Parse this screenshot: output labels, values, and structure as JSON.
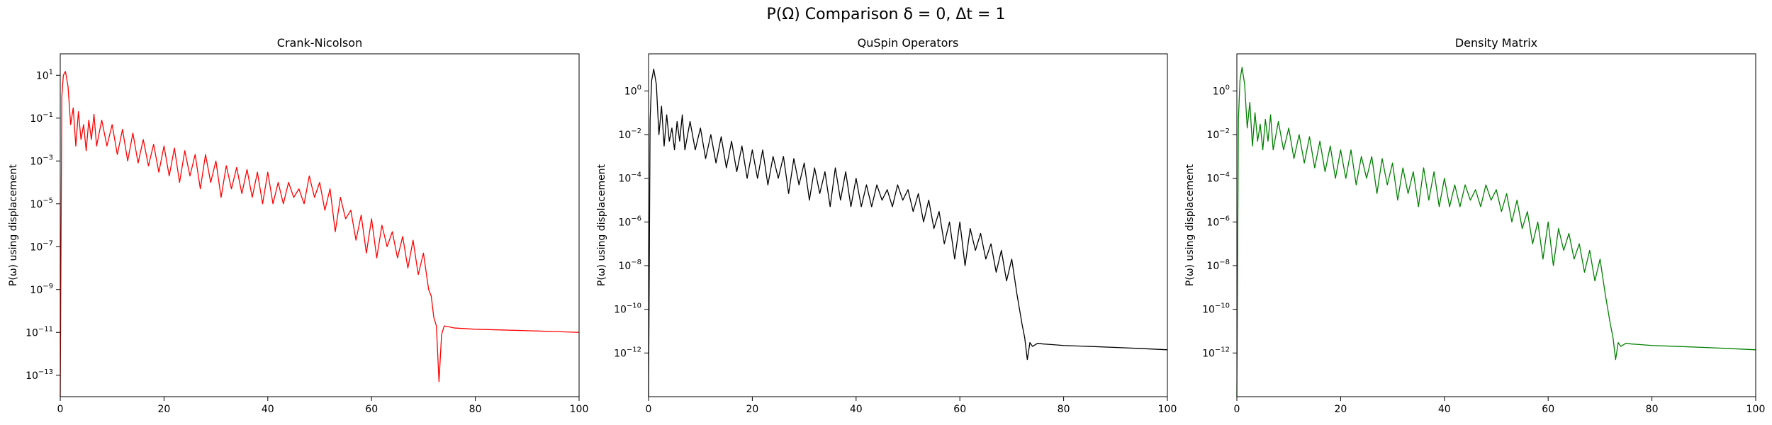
{
  "figure": {
    "title": "P(Ω) Comparison δ = 0, Δt = 1"
  },
  "chart_data": [
    {
      "type": "line",
      "title": "Crank-Nicolson",
      "xlabel": "",
      "ylabel": "P(ω) using displacement",
      "yscale": "log",
      "xlim": [
        0,
        100
      ],
      "ylim": [
        1e-14,
        100
      ],
      "xticks": [
        0,
        20,
        40,
        60,
        80,
        100
      ],
      "yticks_exponents": [
        1,
        -1,
        -3,
        -5,
        -7,
        -9,
        -11,
        -13
      ],
      "grid": false,
      "legend": "none",
      "color": "#ff0000",
      "series": [
        {
          "x": [
            0,
            0.3,
            0.6,
            1,
            1.5,
            2,
            2.5,
            3,
            3.5,
            4,
            4.5,
            5,
            5.5,
            6,
            6.5,
            7,
            8,
            9,
            10,
            11,
            12,
            13,
            14,
            15,
            16,
            17,
            18,
            19,
            20,
            21,
            22,
            23,
            24,
            25,
            26,
            27,
            28,
            29,
            30,
            31,
            32,
            33,
            34,
            35,
            36,
            37,
            38,
            39,
            40,
            41,
            42,
            43,
            44,
            45,
            46,
            47,
            48,
            49,
            50,
            51,
            52,
            53,
            54,
            55,
            56,
            57,
            58,
            59,
            60,
            61,
            62,
            63,
            64,
            65,
            66,
            67,
            68,
            69,
            70,
            71,
            71.5,
            72,
            72.5,
            73,
            73.5,
            74,
            75,
            76,
            78,
            80,
            85,
            90,
            95,
            100
          ],
          "y": [
            1e-14,
            1.0,
            10,
            15,
            3,
            0.05,
            0.3,
            0.005,
            0.2,
            0.01,
            0.05,
            0.003,
            0.08,
            0.01,
            0.15,
            0.005,
            0.08,
            0.005,
            0.05,
            0.002,
            0.03,
            0.001,
            0.02,
            0.0008,
            0.01,
            0.0006,
            0.006,
            0.0003,
            0.005,
            0.0002,
            0.004,
            0.0001,
            0.003,
            0.0002,
            0.002,
            5e-05,
            0.002,
            0.0001,
            0.001,
            2e-05,
            0.0006,
            5e-05,
            0.0005,
            3e-05,
            0.0004,
            2e-05,
            0.0003,
            1e-05,
            0.0003,
            1e-05,
            0.0001,
            1e-05,
            0.0001,
            2e-05,
            5e-05,
            1e-05,
            0.0002,
            2e-05,
            0.0001,
            5e-06,
            5e-05,
            5e-07,
            2e-05,
            2e-06,
            5e-06,
            2e-07,
            3e-06,
            5e-08,
            2e-06,
            3e-08,
            1e-06,
            1e-07,
            5e-07,
            3e-08,
            3e-07,
            1e-08,
            2e-07,
            5e-09,
            5e-08,
            1e-09,
            5e-10,
            5e-11,
            2e-11,
            5e-14,
            8e-12,
            2e-11,
            1.8e-11,
            1.6e-11,
            1.5e-11,
            1.4e-11,
            1.3e-11,
            1.2e-11,
            1.1e-11,
            1e-11
          ]
        }
      ]
    },
    {
      "type": "line",
      "title": "QuSpin Operators",
      "xlabel": "",
      "ylabel": "P(ω) using displacement",
      "yscale": "log",
      "xlim": [
        0,
        100
      ],
      "ylim": [
        1e-14,
        50
      ],
      "xticks": [
        0,
        20,
        40,
        60,
        80,
        100
      ],
      "yticks_exponents": [
        0,
        -2,
        -4,
        -6,
        -8,
        -10,
        -12
      ],
      "grid": false,
      "legend": "none",
      "color": "#000000",
      "series": [
        {
          "x": [
            0,
            0.3,
            0.6,
            1,
            1.5,
            2,
            2.5,
            3,
            3.5,
            4,
            4.5,
            5,
            5.5,
            6,
            6.5,
            7,
            8,
            9,
            10,
            11,
            12,
            13,
            14,
            15,
            16,
            17,
            18,
            19,
            20,
            21,
            22,
            23,
            24,
            25,
            26,
            27,
            28,
            29,
            30,
            31,
            32,
            33,
            34,
            35,
            36,
            37,
            38,
            39,
            40,
            41,
            42,
            43,
            44,
            45,
            46,
            47,
            48,
            49,
            50,
            51,
            52,
            53,
            54,
            55,
            56,
            57,
            58,
            59,
            60,
            61,
            62,
            63,
            64,
            65,
            66,
            67,
            68,
            69,
            70,
            71,
            71.5,
            72,
            72.5,
            73,
            73.5,
            74,
            75,
            76,
            78,
            80,
            85,
            90,
            95,
            100
          ],
          "y": [
            1e-14,
            0.05,
            3,
            10,
            2,
            0.01,
            0.2,
            0.003,
            0.08,
            0.005,
            0.02,
            0.002,
            0.04,
            0.005,
            0.08,
            0.002,
            0.04,
            0.002,
            0.02,
            0.0008,
            0.01,
            0.0005,
            0.008,
            0.0003,
            0.005,
            0.0002,
            0.003,
            0.0001,
            0.002,
            0.0001,
            0.002,
            5e-05,
            0.001,
            0.0001,
            0.001,
            2e-05,
            0.0008,
            5e-05,
            0.0005,
            1e-05,
            0.0003,
            2e-05,
            0.0002,
            5e-06,
            0.0003,
            1e-05,
            0.0002,
            5e-06,
            0.0001,
            5e-06,
            5e-05,
            5e-06,
            5e-05,
            1e-05,
            3e-05,
            5e-06,
            5e-05,
            1e-05,
            3e-05,
            3e-06,
            2e-05,
            1e-06,
            1e-05,
            5e-07,
            3e-06,
            1e-07,
            1e-06,
            2e-08,
            1e-06,
            1e-08,
            5e-07,
            5e-08,
            3e-07,
            2e-08,
            1e-07,
            5e-09,
            5e-08,
            2e-09,
            2e-08,
            5e-10,
            1e-10,
            2e-11,
            5e-12,
            5e-13,
            3e-12,
            2e-12,
            2.8e-12,
            2.6e-12,
            2.4e-12,
            2.2e-12,
            2e-12,
            1.8e-12,
            1.6e-12,
            1.4e-12
          ]
        }
      ]
    },
    {
      "type": "line",
      "title": "Density Matrix",
      "xlabel": "",
      "ylabel": "P(ω) using displacement",
      "yscale": "log",
      "xlim": [
        0,
        100
      ],
      "ylim": [
        1e-14,
        50
      ],
      "xticks": [
        0,
        20,
        40,
        60,
        80,
        100
      ],
      "yticks_exponents": [
        0,
        -2,
        -4,
        -6,
        -8,
        -10,
        -12
      ],
      "grid": false,
      "legend": "none",
      "color": "#008000",
      "series": [
        {
          "x": [
            0,
            0.3,
            0.6,
            1,
            1.5,
            2,
            2.5,
            3,
            3.5,
            4,
            4.5,
            5,
            5.5,
            6,
            6.5,
            7,
            8,
            9,
            10,
            11,
            12,
            13,
            14,
            15,
            16,
            17,
            18,
            19,
            20,
            21,
            22,
            23,
            24,
            25,
            26,
            27,
            28,
            29,
            30,
            31,
            32,
            33,
            34,
            35,
            36,
            37,
            38,
            39,
            40,
            41,
            42,
            43,
            44,
            45,
            46,
            47,
            48,
            49,
            50,
            51,
            52,
            53,
            54,
            55,
            56,
            57,
            58,
            59,
            60,
            61,
            62,
            63,
            64,
            65,
            66,
            67,
            68,
            69,
            70,
            71,
            71.5,
            72,
            72.5,
            73,
            73.5,
            74,
            75,
            76,
            78,
            80,
            85,
            90,
            95,
            100
          ],
          "y": [
            1e-14,
            0.05,
            3,
            12,
            2,
            0.02,
            0.3,
            0.003,
            0.1,
            0.005,
            0.03,
            0.002,
            0.05,
            0.005,
            0.08,
            0.002,
            0.04,
            0.002,
            0.02,
            0.0008,
            0.01,
            0.0005,
            0.008,
            0.0003,
            0.005,
            0.0002,
            0.003,
            0.0001,
            0.002,
            0.0001,
            0.002,
            5e-05,
            0.001,
            0.0001,
            0.001,
            2e-05,
            0.0008,
            5e-05,
            0.0005,
            1e-05,
            0.0003,
            2e-05,
            0.0002,
            5e-06,
            0.0003,
            1e-05,
            0.0002,
            5e-06,
            0.0001,
            5e-06,
            5e-05,
            5e-06,
            5e-05,
            1e-05,
            3e-05,
            5e-06,
            5e-05,
            1e-05,
            3e-05,
            3e-06,
            2e-05,
            1e-06,
            1e-05,
            5e-07,
            3e-06,
            1e-07,
            1e-06,
            2e-08,
            1e-06,
            1e-08,
            5e-07,
            5e-08,
            3e-07,
            2e-08,
            1e-07,
            5e-09,
            5e-08,
            2e-09,
            2e-08,
            5e-10,
            1e-10,
            2e-11,
            5e-12,
            5e-13,
            3e-12,
            2e-12,
            2.8e-12,
            2.6e-12,
            2.4e-12,
            2.2e-12,
            2e-12,
            1.8e-12,
            1.6e-12,
            1.4e-12
          ]
        }
      ]
    }
  ]
}
